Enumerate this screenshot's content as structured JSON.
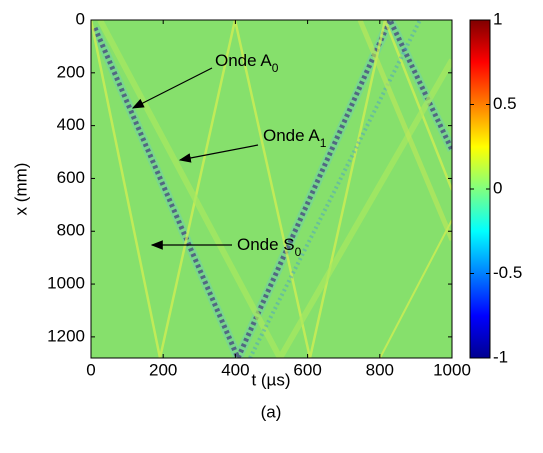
{
  "chart_data": {
    "type": "heatmap",
    "xlabel": "t (µs)",
    "ylabel": "x (mm)",
    "caption": "(a)",
    "xlim": [
      0,
      1000
    ],
    "xticks": [
      0,
      200,
      400,
      600,
      800,
      1000
    ],
    "ylim": [
      0,
      1280
    ],
    "y_reversed": true,
    "yticks": [
      0,
      200,
      400,
      600,
      800,
      1000,
      1200
    ],
    "colormap": "jet",
    "clim": [
      -1,
      1
    ],
    "cticks": [
      -1,
      -0.5,
      0,
      0.5,
      1
    ],
    "annotations": [
      {
        "text": "Onde A",
        "sub": "0"
      },
      {
        "text": "Onde A",
        "sub": "1"
      },
      {
        "text": "Onde S",
        "sub": "0"
      }
    ]
  }
}
